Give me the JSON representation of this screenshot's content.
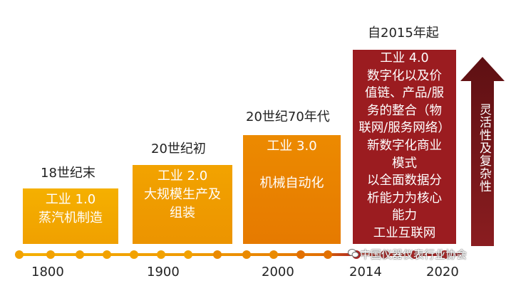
{
  "stages": [
    {
      "era": "18世纪末",
      "lines": [
        "工业 1.0",
        "蒸汽机制造"
      ]
    },
    {
      "era": "20世纪初",
      "lines": [
        "工业 2.0",
        "大规模生产及",
        "组装"
      ]
    },
    {
      "era": "20世纪70年代",
      "lines": [
        "工业 3.0",
        "机械自动化"
      ]
    },
    {
      "era": "自2015年起",
      "lines": [
        "工业 4.0",
        "数字化以及价",
        "值链、产品/服",
        "务的整合（物",
        "联网/服务网络）",
        "新数字化商业",
        "模式",
        "以全面数据分",
        "析能力为核心",
        "能力",
        "工业互联网"
      ]
    }
  ],
  "years": [
    "1800",
    "1900",
    "2000",
    "2014",
    "2020"
  ],
  "arrow_label": "灵活性及复杂性",
  "watermark": "中国仪器仪表行业协会",
  "colors": {
    "stage1": "#f5b000",
    "stage2": "#f2a300",
    "stage3": "#ec8a00",
    "stage4": "#9b1c20",
    "arrow": "#6d1518",
    "timeline_dot": "#f0a000"
  }
}
